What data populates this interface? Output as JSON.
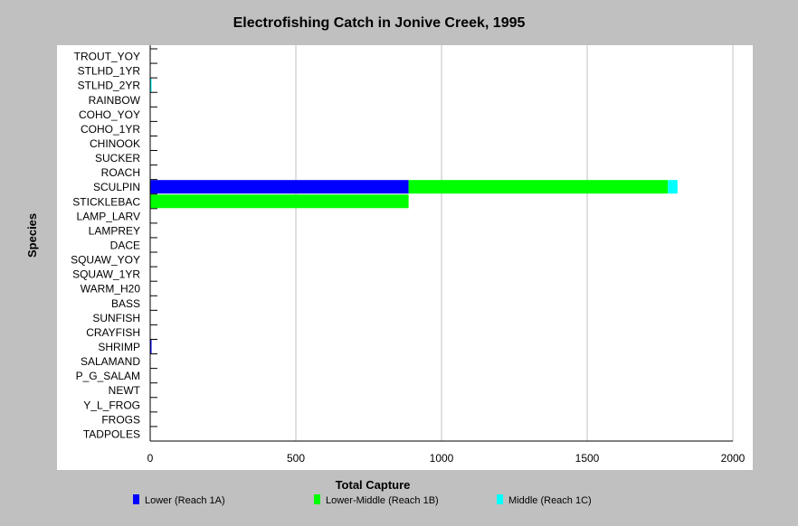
{
  "chart_data": {
    "type": "bar",
    "orientation": "horizontal",
    "stacked": true,
    "title": "Electrofishing Catch in Jonive Creek, 1995",
    "xlabel": "Total Capture",
    "ylabel": "Species",
    "xlim": [
      0,
      2000
    ],
    "xticks": [
      "0",
      "500",
      "1000",
      "1500",
      "2000"
    ],
    "grid": "vertical",
    "legend_position": "bottom",
    "categories": [
      "TROUT_YOY",
      "STLHD_1YR",
      "STLHD_2YR",
      "RAINBOW",
      "COHO_YOY",
      "COHO_1YR",
      "CHINOOK",
      "SUCKER",
      "ROACH",
      "SCULPIN",
      "STICKLEBAC",
      "LAMP_LARV",
      "LAMPREY",
      "DACE",
      "SQUAW_YOY",
      "SQUAW_1YR",
      "WARM_H20",
      "BASS",
      "SUNFISH",
      "CRAYFISH",
      "SHRIMP",
      "SALAMAND",
      "P_G_SALAM",
      "NEWT",
      "Y_L_FROG",
      "FROGS",
      "TADPOLES"
    ],
    "series": [
      {
        "name": "Lower (Reach 1A)",
        "color": "#0000ff",
        "values": [
          0,
          0,
          0,
          0,
          0,
          0,
          0,
          0,
          0,
          887,
          0,
          0,
          0,
          0,
          0,
          0,
          0,
          0,
          0,
          0,
          4,
          0,
          0,
          0,
          0,
          0,
          0
        ]
      },
      {
        "name": "Lower-Middle (Reach 1B)",
        "color": "#00ff00",
        "values": [
          0,
          0,
          0,
          0,
          0,
          0,
          0,
          0,
          0,
          890,
          887,
          0,
          0,
          0,
          0,
          0,
          0,
          0,
          0,
          0,
          0,
          0,
          0,
          0,
          0,
          0,
          0
        ]
      },
      {
        "name": "Middle (Reach 1C)",
        "color": "#00ffff",
        "values": [
          0,
          0,
          4,
          0,
          0,
          0,
          0,
          0,
          0,
          33,
          0,
          0,
          0,
          0,
          0,
          0,
          0,
          0,
          0,
          0,
          0,
          0,
          0,
          0,
          0,
          0,
          0
        ]
      }
    ]
  }
}
